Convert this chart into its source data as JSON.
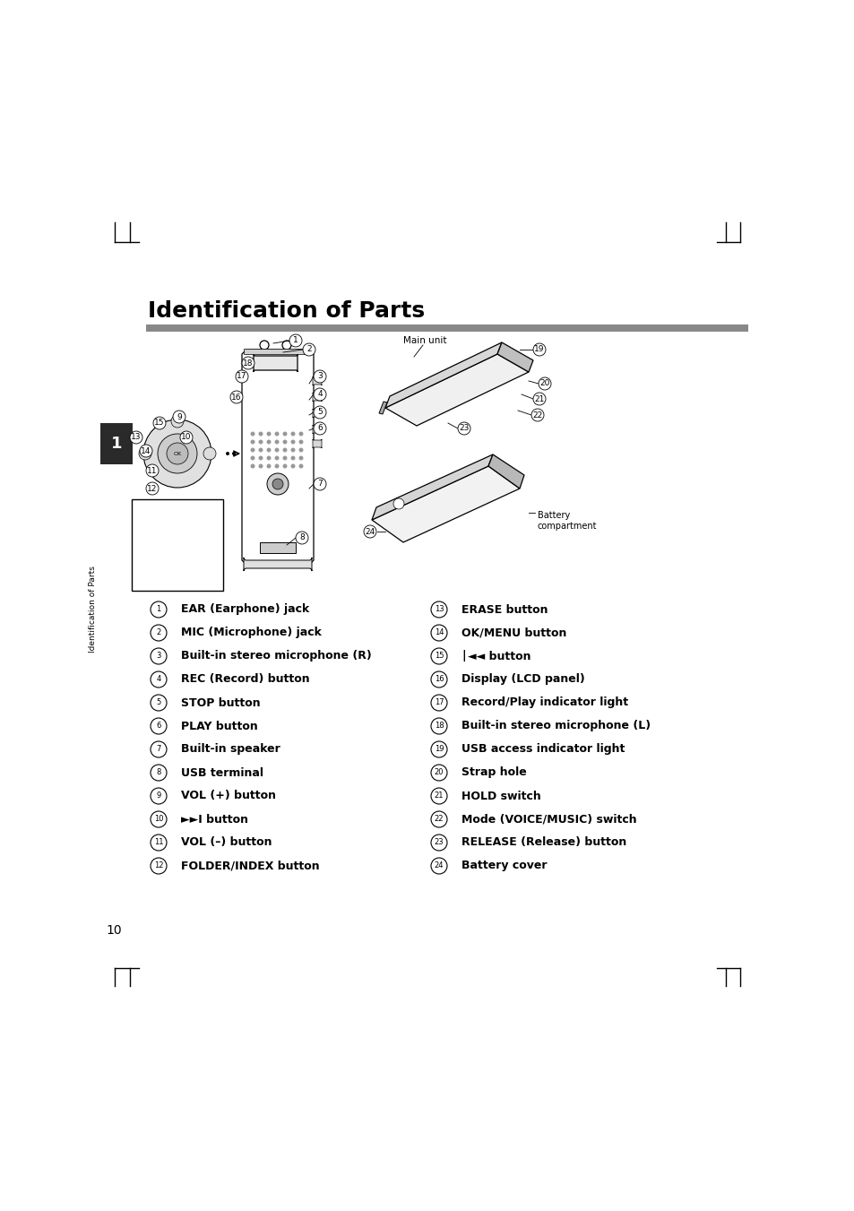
{
  "title": "Identification of Parts",
  "title_fontsize": 18,
  "title_fontweight": "bold",
  "rule_color": "#888888",
  "background_color": "#ffffff",
  "page_number": "10",
  "sidebar_text": "Identification of Parts",
  "sidebar_bg": "#2a2a2a",
  "sidebar_text_color": "#ffffff",
  "left_items": [
    [
      "1",
      "EAR (Earphone) jack"
    ],
    [
      "2",
      "MIC (Microphone) jack"
    ],
    [
      "3",
      "Built-in stereo microphone (R)"
    ],
    [
      "4",
      "REC (Record) button"
    ],
    [
      "5",
      "STOP button"
    ],
    [
      "6",
      "PLAY button"
    ],
    [
      "7",
      "Built-in speaker"
    ],
    [
      "8",
      "USB terminal"
    ],
    [
      "9",
      "VOL (+) button"
    ],
    [
      "10",
      "►►I button"
    ],
    [
      "11",
      "VOL (–) button"
    ],
    [
      "12",
      "FOLDER/INDEX button"
    ]
  ],
  "right_items": [
    [
      "13",
      "ERASE button"
    ],
    [
      "14",
      "OK/MENU button"
    ],
    [
      "15",
      "|<< button"
    ],
    [
      "16",
      "Display (LCD panel)"
    ],
    [
      "17",
      "Record/Play indicator light"
    ],
    [
      "18",
      "Built-in stereo microphone (L)"
    ],
    [
      "19",
      "USB access indicator light"
    ],
    [
      "20",
      "Strap hole"
    ],
    [
      "21",
      "HOLD switch"
    ],
    [
      "22",
      "Mode (VOICE/MUSIC) switch"
    ],
    [
      "23",
      "RELEASE (Release) button"
    ],
    [
      "24",
      "Battery cover"
    ]
  ]
}
